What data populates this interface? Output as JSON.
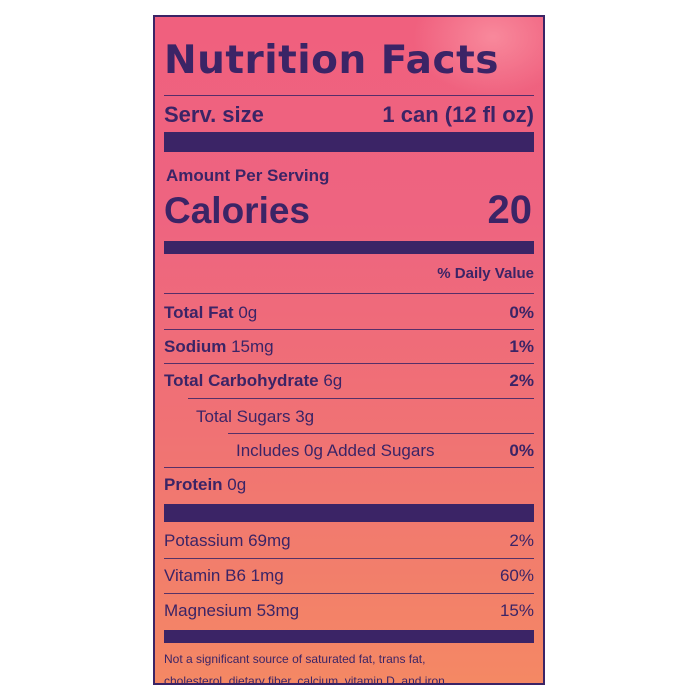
{
  "label": {
    "title": "Nutrition Facts",
    "serving": {
      "label": "Serv. size",
      "value": "1 can (12 fl oz)"
    },
    "amount_per_serving": "Amount Per Serving",
    "calories": {
      "label": "Calories",
      "value": "20"
    },
    "daily_value_header": "% Daily Value",
    "nutrients": [
      {
        "name": "Total Fat",
        "amount": "0g",
        "dv": "0%"
      },
      {
        "name": "Sodium",
        "amount": "15mg",
        "dv": "1%"
      },
      {
        "name": "Total Carbohydrate",
        "amount": "6g",
        "dv": "2%"
      },
      {
        "name": "Total Sugars 3g",
        "amount": "",
        "dv": ""
      },
      {
        "name": "Includes 0g Added Sugars",
        "amount": "",
        "dv": "0%"
      },
      {
        "name": "Protein",
        "amount": "0g",
        "dv": ""
      }
    ],
    "minerals": [
      {
        "name": "Potassium 69mg",
        "dv": "2%"
      },
      {
        "name": "Vitamin B6 1mg",
        "dv": "60%"
      },
      {
        "name": "Magnesium 53mg",
        "dv": "15%"
      }
    ],
    "footnote": {
      "line1": "Not a significant source of saturated fat, trans fat,",
      "line2": "cholesterol, dietary fiber, calcium, vitamin D, and iron."
    },
    "colors": {
      "ink": "#3b2466",
      "background_top": "#f0607e",
      "background_bottom": "#f48864"
    }
  }
}
